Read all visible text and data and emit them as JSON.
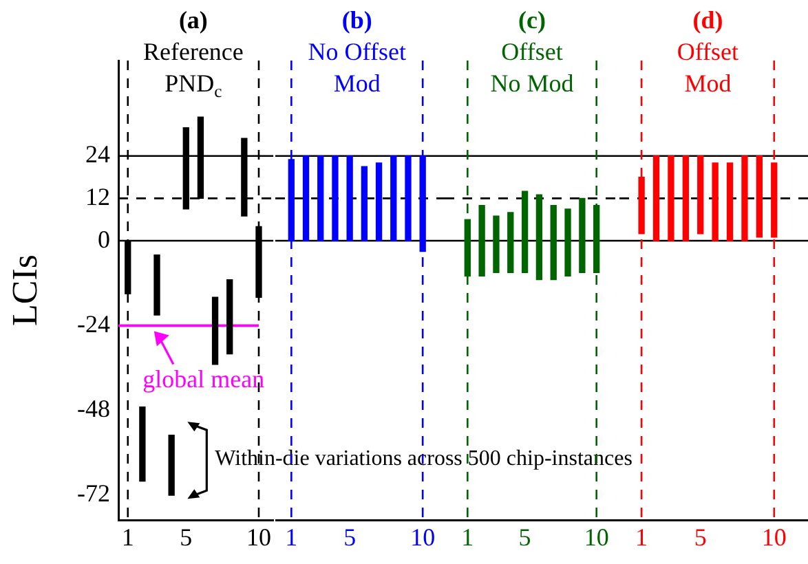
{
  "chart_data": [
    {
      "type": "bar",
      "title": "(a)\nReference\nPND$_{c}$",
      "ylabel": "LCIs",
      "color": "#000000",
      "grid": false,
      "x": [
        1,
        2,
        3,
        4,
        5,
        6,
        7,
        8,
        9,
        10
      ],
      "base": [
        -15,
        -68,
        -21,
        -72,
        9,
        12,
        -35,
        -32,
        7,
        -16
      ],
      "values": [
        15,
        21,
        17,
        17,
        23,
        23,
        19,
        21,
        22,
        20
      ],
      "xlim": [
        0.35,
        11
      ],
      "xticks": [
        1,
        5,
        10
      ],
      "ylim": [
        -79,
        51
      ],
      "yticks": [
        -72,
        -48,
        -24,
        0,
        12,
        24
      ],
      "ref_lines": [
        {
          "axis": "y",
          "value": 24,
          "color": "#000000"
        },
        {
          "axis": "y",
          "value": 12,
          "color": "#000000",
          "line_style": "dashed"
        },
        {
          "axis": "y",
          "value": 0,
          "color": "#000000"
        },
        {
          "axis": "x",
          "value": 1,
          "color": "#000000",
          "line_style": "dashed"
        },
        {
          "axis": "x",
          "value": 10,
          "color": "#000000",
          "line_style": "dashed"
        },
        {
          "axis": "y",
          "value": -24,
          "color": "#ff00ff",
          "label": "global mean"
        }
      ],
      "annotations": [
        "Within-die variations across 500 chip-instances"
      ]
    },
    {
      "type": "bar",
      "title": "(b)\nNo Offset\nMod",
      "color": "#0000ff",
      "grid": false,
      "tick_labels": "x",
      "x": [
        1,
        2,
        3,
        4,
        5,
        6,
        7,
        8,
        9,
        10
      ],
      "base": [
        0,
        0,
        0,
        0,
        0,
        0,
        0,
        0,
        0,
        -3
      ],
      "values": [
        23,
        24,
        24,
        24,
        24,
        21,
        22,
        24,
        24,
        27
      ],
      "xlim": [
        -0.1,
        11.5
      ],
      "xticks": [
        1,
        5,
        10
      ],
      "ylim": [
        -79,
        51
      ],
      "ref_lines": [
        {
          "axis": "y",
          "value": 24,
          "color": "#000000"
        },
        {
          "axis": "y",
          "value": 12,
          "color": "#000000",
          "line_style": "dashed"
        },
        {
          "axis": "y",
          "value": 0,
          "color": "#000000"
        },
        {
          "axis": "x",
          "value": 1,
          "color": "#0000ff",
          "line_style": "dashed"
        },
        {
          "axis": "x",
          "value": 10,
          "color": "#0000ff",
          "line_style": "dashed"
        }
      ]
    },
    {
      "type": "bar",
      "title": "(c)\nOffset\nNo Mod",
      "color": "#006400",
      "grid": false,
      "tick_labels": "x",
      "x": [
        1,
        2,
        3,
        4,
        5,
        6,
        7,
        8,
        9,
        10
      ],
      "base": [
        -10,
        -10,
        -9,
        -9,
        -9,
        -11,
        -11,
        -10,
        -9,
        -9
      ],
      "values": [
        16,
        20,
        16,
        17,
        23,
        24,
        21,
        19,
        21,
        19
      ],
      "xlim": [
        -0.6,
        11.6
      ],
      "xticks": [
        1,
        5,
        10
      ],
      "ylim": [
        -79,
        51
      ],
      "ref_lines": [
        {
          "axis": "y",
          "value": 24,
          "color": "#000000"
        },
        {
          "axis": "y",
          "value": 12,
          "color": "#000000",
          "line_style": "dashed"
        },
        {
          "axis": "y",
          "value": 0,
          "color": "#000000"
        },
        {
          "axis": "x",
          "value": 1,
          "color": "#006400",
          "line_style": "dashed"
        },
        {
          "axis": "x",
          "value": 10,
          "color": "#006400",
          "line_style": "dashed"
        }
      ]
    },
    {
      "type": "bar",
      "title": "(d)\nOffset\nMod",
      "color": "#ff0000",
      "grid": false,
      "tick_labels": "x",
      "x": [
        1,
        2,
        3,
        4,
        5,
        6,
        7,
        8,
        9,
        10
      ],
      "base": [
        2,
        0,
        0,
        0,
        2,
        0,
        0,
        0,
        1,
        1
      ],
      "values": [
        16,
        24,
        24,
        24,
        22,
        22,
        22,
        24,
        23,
        21
      ],
      "xlim": [
        -0.5,
        12.3
      ],
      "xticks": [
        1,
        5,
        10
      ],
      "ylim": [
        -79,
        51
      ],
      "ref_lines": [
        {
          "axis": "y",
          "value": 24,
          "color": "#000000"
        },
        {
          "axis": "y",
          "value": 12,
          "color": "#000000",
          "line_style": "dashed"
        },
        {
          "axis": "y",
          "value": 0,
          "color": "#000000"
        },
        {
          "axis": "x",
          "value": 1,
          "color": "#ff0000",
          "line_style": "dashed"
        },
        {
          "axis": "x",
          "value": 10,
          "color": "#ff0000",
          "line_style": "dashed"
        }
      ]
    }
  ]
}
